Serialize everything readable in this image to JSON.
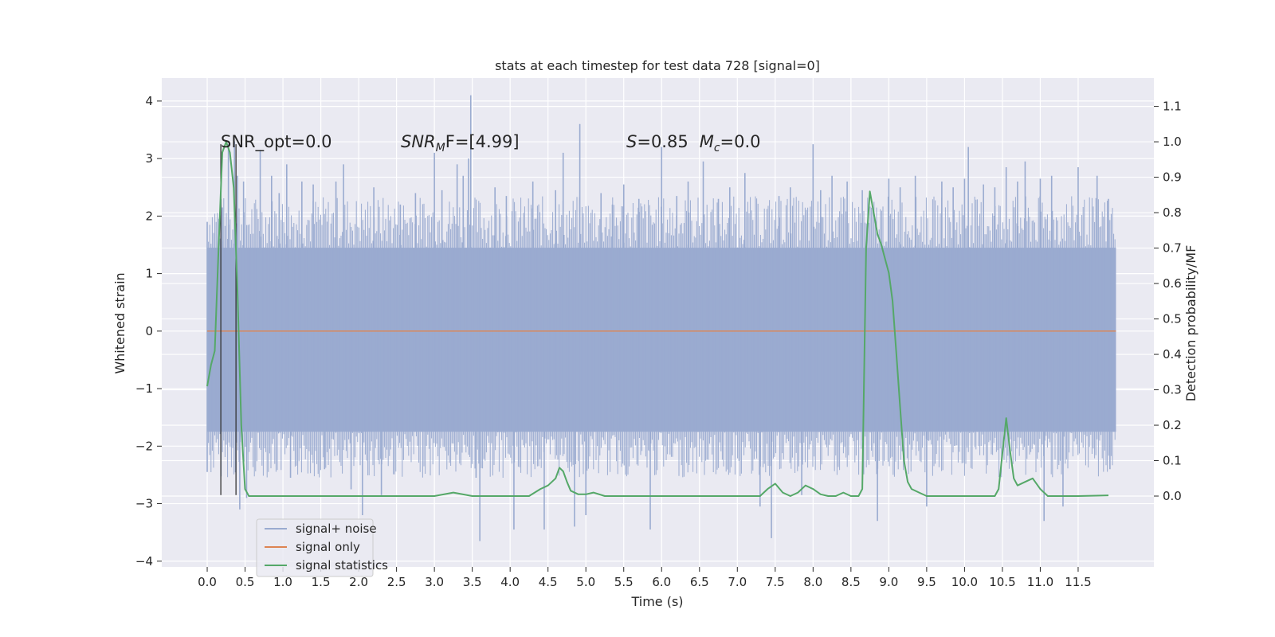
{
  "chart_data": {
    "type": "line",
    "title": "stats at each timestep for test data 728 [signal=0]",
    "xlabel": "Time (s)",
    "ylabel_left": "Whitened strain",
    "ylabel_right": "Detection probability/MF",
    "xlim": [
      -0.6,
      12.5
    ],
    "ylim_left": [
      -4.1,
      4.4
    ],
    "ylim_right": [
      -0.2,
      1.18
    ],
    "x_ticks": [
      0.0,
      0.5,
      1.0,
      1.5,
      2.0,
      2.5,
      3.0,
      3.5,
      4.0,
      4.5,
      5.0,
      5.5,
      6.0,
      6.5,
      7.0,
      7.5,
      8.0,
      8.5,
      9.0,
      9.5,
      10.0,
      10.5,
      11.0,
      11.5
    ],
    "x_tick_labels": [
      "0.0",
      "0.5",
      "1.0",
      "1.5",
      "2.0",
      "2.5",
      "3.0",
      "3.5",
      "4.0",
      "4.5",
      "5.0",
      "5.5",
      "6.0",
      "6.5",
      "7.0",
      "7.5",
      "8.0",
      "8.5",
      "9.0",
      "9.5",
      "10.0",
      "10.5",
      "11.0",
      "11.5"
    ],
    "y_ticks_left": [
      4,
      3,
      2,
      1,
      0,
      -1,
      -2,
      -3,
      -4
    ],
    "y_tick_labels_left": [
      "4",
      "3",
      "2",
      "1",
      "0",
      "−1",
      "−2",
      "−3",
      "−4"
    ],
    "y_ticks_right": [
      1.1,
      1.0,
      0.9,
      0.8,
      0.7,
      0.6,
      0.5,
      0.4,
      0.3,
      0.2,
      0.1,
      0.0
    ],
    "y_tick_labels_right": [
      "1.1",
      "1.0",
      "0.9",
      "0.8",
      "0.7",
      "0.6",
      "0.5",
      "0.4",
      "0.3",
      "0.2",
      "0.1",
      "0.0"
    ],
    "grid": true,
    "legend_placement": "lower-left",
    "series": [
      {
        "name": "signal+ noise",
        "axis": "left",
        "color": "#9aabd0",
        "x_range": [
          0.0,
          12.0
        ],
        "envelope_upper": 1.45,
        "envelope_lower": -1.75,
        "spikes": [
          [
            0.0,
            1.9
          ],
          [
            0.0,
            -2.45
          ],
          [
            0.2,
            2.15
          ],
          [
            0.28,
            3.25
          ],
          [
            0.36,
            3.3
          ],
          [
            0.4,
            2.7
          ],
          [
            0.43,
            -3.1
          ],
          [
            0.48,
            2.6
          ],
          [
            0.52,
            -2.9
          ],
          [
            0.7,
            3.15
          ],
          [
            0.85,
            2.7
          ],
          [
            0.95,
            2.4
          ],
          [
            1.05,
            2.9
          ],
          [
            1.1,
            -2.55
          ],
          [
            1.25,
            2.6
          ],
          [
            1.4,
            2.55
          ],
          [
            1.55,
            -2.4
          ],
          [
            1.7,
            2.6
          ],
          [
            1.8,
            2.9
          ],
          [
            1.9,
            -2.75
          ],
          [
            2.05,
            -3.2
          ],
          [
            2.2,
            2.5
          ],
          [
            2.3,
            -2.85
          ],
          [
            2.55,
            2.2
          ],
          [
            2.75,
            2.4
          ],
          [
            3.0,
            3.1
          ],
          [
            3.1,
            2.45
          ],
          [
            3.3,
            2.9
          ],
          [
            3.38,
            2.7
          ],
          [
            3.45,
            3.0
          ],
          [
            3.48,
            4.1
          ],
          [
            3.55,
            -2.55
          ],
          [
            3.6,
            -3.65
          ],
          [
            3.8,
            2.5
          ],
          [
            3.95,
            2.35
          ],
          [
            4.05,
            -3.45
          ],
          [
            4.3,
            2.6
          ],
          [
            4.45,
            -3.45
          ],
          [
            4.6,
            2.45
          ],
          [
            4.7,
            3.1
          ],
          [
            4.85,
            -3.4
          ],
          [
            4.92,
            3.6
          ],
          [
            5.0,
            -3.2
          ],
          [
            5.2,
            2.4
          ],
          [
            5.35,
            2.2
          ],
          [
            5.5,
            2.55
          ],
          [
            5.7,
            2.3
          ],
          [
            5.85,
            -3.45
          ],
          [
            6.0,
            3.2
          ],
          [
            6.2,
            2.35
          ],
          [
            6.35,
            2.6
          ],
          [
            6.55,
            2.95
          ],
          [
            6.75,
            2.3
          ],
          [
            6.9,
            2.5
          ],
          [
            7.1,
            2.75
          ],
          [
            7.3,
            -3.05
          ],
          [
            7.45,
            -3.6
          ],
          [
            7.55,
            2.35
          ],
          [
            7.7,
            2.5
          ],
          [
            7.85,
            -2.85
          ],
          [
            8.0,
            3.25
          ],
          [
            8.1,
            2.45
          ],
          [
            8.25,
            2.7
          ],
          [
            8.45,
            2.6
          ],
          [
            8.65,
            2.45
          ],
          [
            8.85,
            -3.3
          ],
          [
            9.0,
            2.65
          ],
          [
            9.15,
            2.5
          ],
          [
            9.35,
            2.7
          ],
          [
            9.5,
            -3.05
          ],
          [
            9.7,
            2.6
          ],
          [
            9.85,
            2.5
          ],
          [
            10.0,
            2.65
          ],
          [
            10.05,
            3.2
          ],
          [
            10.25,
            2.55
          ],
          [
            10.4,
            2.5
          ],
          [
            10.55,
            2.85
          ],
          [
            10.7,
            2.6
          ],
          [
            10.8,
            2.95
          ],
          [
            11.0,
            2.65
          ],
          [
            11.15,
            2.7
          ],
          [
            11.05,
            -3.3
          ],
          [
            11.3,
            -3.05
          ],
          [
            11.5,
            2.85
          ],
          [
            11.75,
            2.7
          ],
          [
            11.9,
            2.3
          ],
          [
            11.92,
            -2.4
          ]
        ]
      },
      {
        "name": "signal only",
        "axis": "left",
        "color": "#dd8452",
        "x": [
          0.0,
          12.0
        ],
        "y": [
          0.0,
          0.0
        ]
      },
      {
        "name": "signal statistics",
        "axis": "right",
        "color": "#55a868",
        "x": [
          0.0,
          0.05,
          0.1,
          0.15,
          0.2,
          0.25,
          0.3,
          0.35,
          0.4,
          0.45,
          0.5,
          0.55,
          0.6,
          0.7,
          0.8,
          0.9,
          1.0,
          1.5,
          2.0,
          2.5,
          3.0,
          3.25,
          3.5,
          4.0,
          4.25,
          4.4,
          4.5,
          4.6,
          4.65,
          4.7,
          4.75,
          4.8,
          4.9,
          5.0,
          5.1,
          5.25,
          5.5,
          6.0,
          6.5,
          7.0,
          7.3,
          7.4,
          7.5,
          7.6,
          7.7,
          7.8,
          7.9,
          8.0,
          8.1,
          8.2,
          8.3,
          8.4,
          8.5,
          8.6,
          8.65,
          8.7,
          8.75,
          8.8,
          8.85,
          8.9,
          8.95,
          9.0,
          9.05,
          9.1,
          9.15,
          9.2,
          9.25,
          9.3,
          9.4,
          9.5,
          9.75,
          10.0,
          10.25,
          10.4,
          10.45,
          10.5,
          10.55,
          10.6,
          10.65,
          10.7,
          10.8,
          10.9,
          11.0,
          11.1,
          11.5,
          11.9
        ],
        "y": [
          0.31,
          0.37,
          0.41,
          0.7,
          0.97,
          1.0,
          0.97,
          0.87,
          0.58,
          0.2,
          0.02,
          0.0,
          0.0,
          0.0,
          0.0,
          0.0,
          0.0,
          0.0,
          0.0,
          0.0,
          0.0,
          0.01,
          0.0,
          0.0,
          0.0,
          0.02,
          0.03,
          0.05,
          0.08,
          0.07,
          0.04,
          0.015,
          0.005,
          0.005,
          0.01,
          0.0,
          0.0,
          0.0,
          0.0,
          0.0,
          0.0,
          0.02,
          0.035,
          0.01,
          0.0,
          0.01,
          0.03,
          0.02,
          0.005,
          0.0,
          0.0,
          0.01,
          0.0,
          0.0,
          0.02,
          0.7,
          0.86,
          0.8,
          0.74,
          0.71,
          0.67,
          0.63,
          0.55,
          0.4,
          0.25,
          0.1,
          0.04,
          0.02,
          0.01,
          0.0,
          0.0,
          0.0,
          0.0,
          0.0,
          0.02,
          0.12,
          0.22,
          0.13,
          0.05,
          0.03,
          0.04,
          0.05,
          0.02,
          0.0,
          0.0,
          0.002
        ]
      }
    ],
    "markers": [
      {
        "x": 0.18,
        "y_low": -2.85,
        "y_high": 3.25,
        "color": "#333333"
      },
      {
        "x": 0.38,
        "y_low": -2.85,
        "y_high": 3.25,
        "color": "#333333"
      }
    ],
    "annotations": [
      {
        "kind": "plain",
        "text": "SNR_opt=0.0"
      },
      {
        "kind": "snr_mf",
        "main": "SNR",
        "sub": "M",
        "after": "F=[4.99]"
      },
      {
        "kind": "s_mc",
        "s": "S",
        "s_value": "=0.85",
        "m": "M",
        "m_sub": "c",
        "m_value": "=0.0"
      }
    ]
  }
}
